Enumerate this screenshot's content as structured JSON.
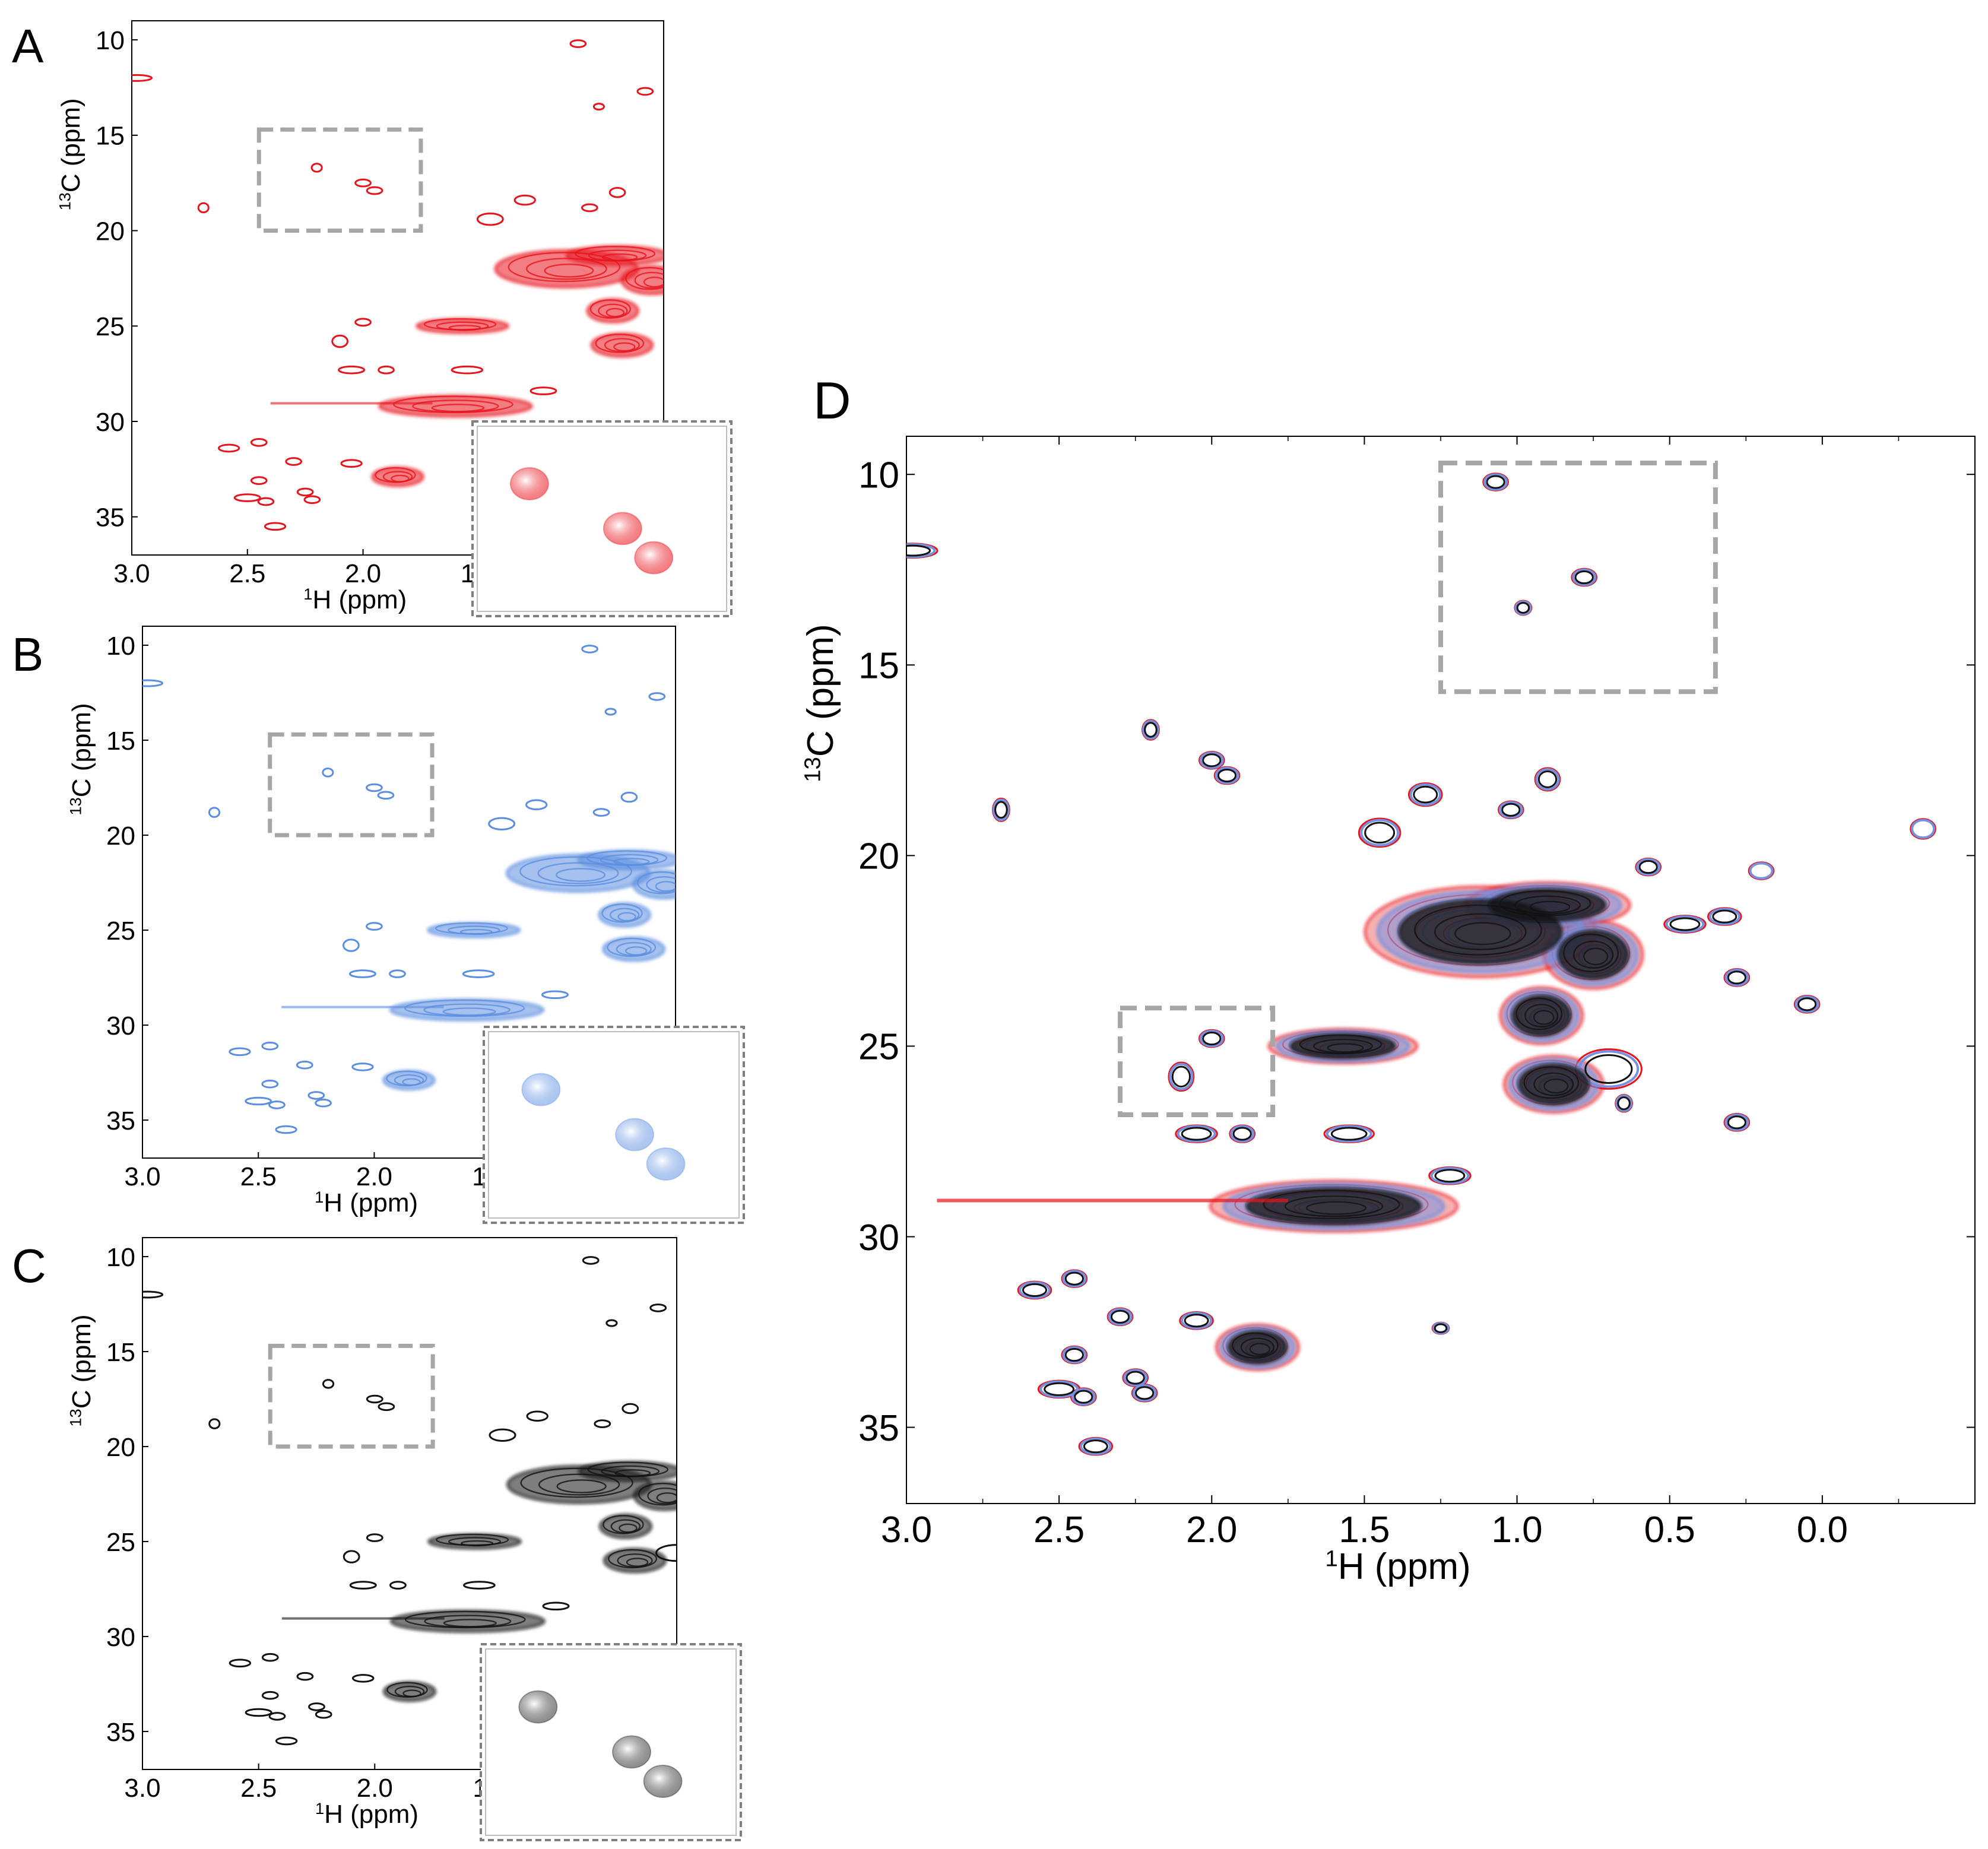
{
  "figure": {
    "colors": {
      "A": "#e8141c",
      "B": "#5b8ee0",
      "C": "#111111",
      "dashed_box": "#a6a6a6",
      "inset_border": "#7f7f7f",
      "D_blue_underlay": "#7591e0"
    }
  },
  "chart_data": [
    {
      "panel": "A",
      "type": "scatter",
      "subtype": "2D NMR contour spectrum (1H-13C)",
      "panel_label": "A",
      "xlabel_sup": "1",
      "xlabel_text": "H (ppm)",
      "ylabel_sup": "13",
      "ylabel_text": "C (ppm)",
      "xlim": [
        3.0,
        0.7
      ],
      "ylim": [
        9,
        37
      ],
      "x_ticks": [
        "3.0",
        "2.5",
        "2.0",
        "1.5",
        "1.0"
      ],
      "x_tick_values": [
        3.0,
        2.5,
        2.0,
        1.5,
        1.0
      ],
      "y_ticks": [
        "10",
        "15",
        "20",
        "25",
        "30",
        "35"
      ],
      "y_tick_values": [
        10,
        15,
        20,
        25,
        30,
        35
      ],
      "highlight_region": {
        "x": [
          2.45,
          1.75
        ],
        "y": [
          14.7,
          20.0
        ]
      },
      "inset_peaks": [
        {
          "x": 0.22,
          "y": 0.32
        },
        {
          "x": 0.58,
          "y": 0.55
        },
        {
          "x": 0.7,
          "y": 0.7
        }
      ],
      "peaks": [
        {
          "x": 1.07,
          "y": 10.2,
          "w": 0.03,
          "h": 0.3
        },
        {
          "x": 2.98,
          "y": 12.0,
          "w": 0.06,
          "h": 0.25
        },
        {
          "x": 0.78,
          "y": 12.7,
          "w": 0.03,
          "h": 0.3
        },
        {
          "x": 0.98,
          "y": 13.5,
          "w": 0.02,
          "h": 0.25
        },
        {
          "x": 2.2,
          "y": 16.7,
          "w": 0.02,
          "h": 0.35
        },
        {
          "x": 2.0,
          "y": 17.5,
          "w": 0.03,
          "h": 0.3
        },
        {
          "x": 1.95,
          "y": 17.9,
          "w": 0.03,
          "h": 0.3
        },
        {
          "x": 1.3,
          "y": 18.4,
          "w": 0.04,
          "h": 0.4
        },
        {
          "x": 0.9,
          "y": 18.0,
          "w": 0.03,
          "h": 0.4
        },
        {
          "x": 1.45,
          "y": 19.4,
          "w": 0.05,
          "h": 0.5
        },
        {
          "x": 2.69,
          "y": 18.8,
          "w": 0.02,
          "h": 0.4
        },
        {
          "x": 1.02,
          "y": 18.8,
          "w": 0.03,
          "h": 0.3
        },
        {
          "x": 0.57,
          "y": 20.3,
          "w": 0.03,
          "h": 0.3
        },
        {
          "x": 0.2,
          "y": 20.4,
          "w": 0.03,
          "h": 0.3
        },
        {
          "x": -0.33,
          "y": 19.3,
          "w": 0.03,
          "h": 0.35
        },
        {
          "x": 1.12,
          "y": 22.0,
          "w": 0.28,
          "h": 1.6
        },
        {
          "x": 0.9,
          "y": 21.3,
          "w": 0.2,
          "h": 0.8
        },
        {
          "x": 0.75,
          "y": 22.6,
          "w": 0.12,
          "h": 1.2
        },
        {
          "x": 0.92,
          "y": 24.2,
          "w": 0.1,
          "h": 1.0
        },
        {
          "x": 0.88,
          "y": 26.0,
          "w": 0.12,
          "h": 1.0
        },
        {
          "x": 0.7,
          "y": 25.6,
          "w": 0.08,
          "h": 0.7
        },
        {
          "x": 0.45,
          "y": 21.8,
          "w": 0.05,
          "h": 0.3
        },
        {
          "x": 0.32,
          "y": 21.6,
          "w": 0.04,
          "h": 0.3
        },
        {
          "x": 1.57,
          "y": 25.0,
          "w": 0.18,
          "h": 0.6
        },
        {
          "x": 2.1,
          "y": 25.8,
          "w": 0.03,
          "h": 0.5
        },
        {
          "x": 2.0,
          "y": 24.8,
          "w": 0.03,
          "h": 0.3
        },
        {
          "x": 2.05,
          "y": 27.3,
          "w": 0.05,
          "h": 0.3
        },
        {
          "x": 1.9,
          "y": 27.3,
          "w": 0.03,
          "h": 0.3
        },
        {
          "x": 1.55,
          "y": 27.3,
          "w": 0.06,
          "h": 0.3
        },
        {
          "x": 1.22,
          "y": 28.4,
          "w": 0.05,
          "h": 0.3
        },
        {
          "x": 1.6,
          "y": 29.2,
          "w": 0.3,
          "h": 0.9
        },
        {
          "x": 0.28,
          "y": 27.0,
          "w": 0.03,
          "h": 0.3
        },
        {
          "x": 0.65,
          "y": 26.5,
          "w": 0.02,
          "h": 0.3
        },
        {
          "x": 2.58,
          "y": 31.4,
          "w": 0.04,
          "h": 0.3
        },
        {
          "x": 2.45,
          "y": 31.1,
          "w": 0.03,
          "h": 0.3
        },
        {
          "x": 2.3,
          "y": 32.1,
          "w": 0.03,
          "h": 0.3
        },
        {
          "x": 2.05,
          "y": 32.2,
          "w": 0.04,
          "h": 0.3
        },
        {
          "x": 1.85,
          "y": 32.9,
          "w": 0.1,
          "h": 0.8
        },
        {
          "x": 1.25,
          "y": 32.4,
          "w": 0.02,
          "h": 0.2
        },
        {
          "x": 2.45,
          "y": 33.1,
          "w": 0.03,
          "h": 0.3
        },
        {
          "x": 2.25,
          "y": 33.7,
          "w": 0.03,
          "h": 0.3
        },
        {
          "x": 2.5,
          "y": 34.0,
          "w": 0.05,
          "h": 0.3
        },
        {
          "x": 2.42,
          "y": 34.2,
          "w": 0.03,
          "h": 0.3
        },
        {
          "x": 2.22,
          "y": 34.1,
          "w": 0.03,
          "h": 0.3
        },
        {
          "x": 2.38,
          "y": 35.5,
          "w": 0.04,
          "h": 0.3
        },
        {
          "x": 0.05,
          "y": 23.9,
          "w": 0.03,
          "h": 0.3
        },
        {
          "x": 0.28,
          "y": 23.2,
          "w": 0.03,
          "h": 0.3
        }
      ]
    },
    {
      "panel": "B",
      "type": "scatter",
      "subtype": "2D NMR contour spectrum (1H-13C)",
      "panel_label": "B",
      "xlabel_sup": "1",
      "xlabel_text": "H (ppm)",
      "ylabel_sup": "13",
      "ylabel_text": "C (ppm)",
      "xlim": [
        3.0,
        0.7
      ],
      "ylim": [
        9,
        37
      ],
      "x_ticks": [
        "3.0",
        "2.5",
        "2.0",
        "1.5",
        "1.0"
      ],
      "x_tick_values": [
        3.0,
        2.5,
        2.0,
        1.5,
        1.0
      ],
      "y_ticks": [
        "10",
        "15",
        "20",
        "25",
        "30",
        "35"
      ],
      "y_tick_values": [
        10,
        15,
        20,
        25,
        30,
        35
      ],
      "highlight_region": {
        "x": [
          2.45,
          1.75
        ],
        "y": [
          14.7,
          20.0
        ]
      },
      "inset_peaks": [
        {
          "x": 0.22,
          "y": 0.32
        },
        {
          "x": 0.58,
          "y": 0.55
        },
        {
          "x": 0.7,
          "y": 0.7
        }
      ]
    },
    {
      "panel": "C",
      "type": "scatter",
      "subtype": "2D NMR contour spectrum (1H-13C)",
      "panel_label": "C",
      "xlabel_sup": "1",
      "xlabel_text": "H (ppm)",
      "ylabel_sup": "13",
      "ylabel_text": "C (ppm)",
      "xlim": [
        3.0,
        0.7
      ],
      "ylim": [
        9,
        37
      ],
      "x_ticks": [
        "3.0",
        "2.5",
        "2.0",
        "1.5",
        "1.0"
      ],
      "x_tick_values": [
        3.0,
        2.5,
        2.0,
        1.5,
        1.0
      ],
      "y_ticks": [
        "10",
        "15",
        "20",
        "25",
        "30",
        "35"
      ],
      "y_tick_values": [
        10,
        15,
        20,
        25,
        30,
        35
      ],
      "highlight_region": {
        "x": [
          2.45,
          1.75
        ],
        "y": [
          14.7,
          20.0
        ]
      },
      "inset_peaks": [
        {
          "x": 0.22,
          "y": 0.32
        },
        {
          "x": 0.58,
          "y": 0.55
        },
        {
          "x": 0.7,
          "y": 0.7
        }
      ]
    },
    {
      "panel": "D",
      "type": "scatter",
      "subtype": "overlay of spectra A (red), B (blue) and C (black)",
      "panel_label": "D",
      "xlabel_sup": "1",
      "xlabel_text": "H (ppm)",
      "ylabel_sup": "13",
      "ylabel_text": "C (ppm)",
      "xlim": [
        3.0,
        -0.5
      ],
      "ylim": [
        9,
        37
      ],
      "x_ticks": [
        "3.0",
        "2.5",
        "2.0",
        "1.5",
        "1.0",
        "0.5",
        "0.0"
      ],
      "x_tick_values": [
        3.0,
        2.5,
        2.0,
        1.5,
        1.0,
        0.5,
        0.0
      ],
      "y_ticks": [
        "10",
        "15",
        "20",
        "25",
        "30",
        "35"
      ],
      "y_tick_values": [
        10,
        15,
        20,
        25,
        30,
        35
      ],
      "highlight_regions": [
        {
          "x": [
            1.25,
            0.35
          ],
          "y": [
            9.7,
            15.7
          ]
        },
        {
          "x": [
            2.3,
            1.8
          ],
          "y": [
            24.0,
            26.8
          ]
        }
      ]
    }
  ]
}
